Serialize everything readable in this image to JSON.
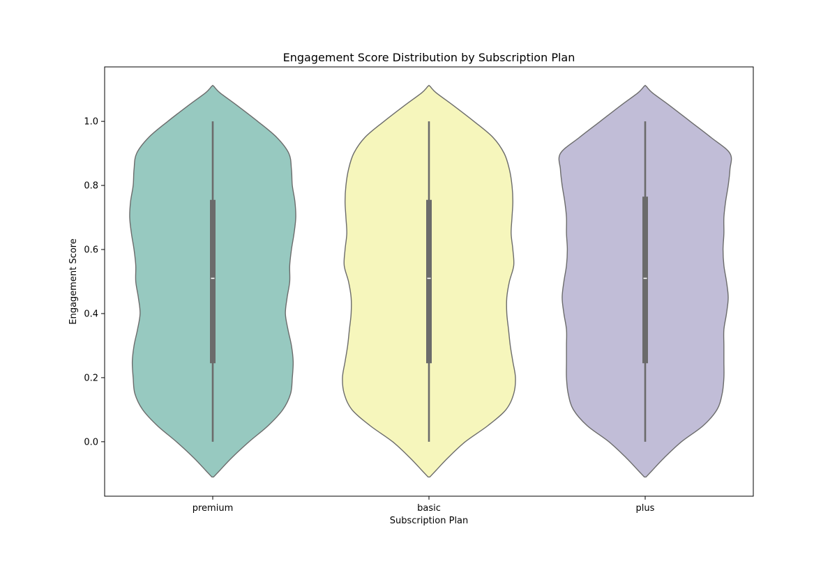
{
  "chart_data": {
    "type": "violin",
    "title": "Engagement Score Distribution by Subscription Plan",
    "xlabel": "Subscription Plan",
    "ylabel": "Engagement Score",
    "categories": [
      "premium",
      "basic",
      "plus"
    ],
    "ylim": [
      -0.17,
      1.17
    ],
    "yticks": [
      0.0,
      0.2,
      0.4,
      0.6,
      0.8,
      1.0
    ],
    "ytick_labels": [
      "0.0",
      "0.2",
      "0.4",
      "0.6",
      "0.8",
      "1.0"
    ],
    "grid": false,
    "legend": "none",
    "colors": [
      "#97c9c0",
      "#f6f6bc",
      "#c1bdd7"
    ],
    "edge_color": "#6b6b6b",
    "box_color": "#6b6b6b",
    "median_color": "#ffffff",
    "violins": [
      {
        "category": "premium",
        "min": 0.0,
        "q1": 0.245,
        "median": 0.51,
        "q3": 0.755,
        "max": 1.0,
        "kde_y": [
          -0.11,
          -0.09,
          -0.05,
          0.0,
          0.05,
          0.1,
          0.15,
          0.2,
          0.25,
          0.3,
          0.35,
          0.4,
          0.45,
          0.5,
          0.55,
          0.6,
          0.65,
          0.7,
          0.75,
          0.8,
          0.85,
          0.9,
          0.95,
          1.0,
          1.05,
          1.09,
          1.11
        ],
        "kde_w": [
          0.01,
          0.08,
          0.22,
          0.42,
          0.64,
          0.81,
          0.9,
          0.92,
          0.93,
          0.91,
          0.87,
          0.84,
          0.86,
          0.89,
          0.89,
          0.91,
          0.94,
          0.96,
          0.95,
          0.92,
          0.91,
          0.88,
          0.74,
          0.52,
          0.28,
          0.08,
          0.01
        ]
      },
      {
        "category": "basic",
        "min": 0.0,
        "q1": 0.245,
        "median": 0.51,
        "q3": 0.755,
        "max": 1.0,
        "kde_y": [
          -0.11,
          -0.09,
          -0.05,
          0.0,
          0.05,
          0.1,
          0.15,
          0.2,
          0.25,
          0.3,
          0.35,
          0.4,
          0.45,
          0.5,
          0.55,
          0.6,
          0.65,
          0.7,
          0.75,
          0.8,
          0.85,
          0.9,
          0.95,
          1.0,
          1.05,
          1.09,
          1.11
        ],
        "kde_w": [
          0.01,
          0.08,
          0.22,
          0.42,
          0.68,
          0.89,
          0.98,
          1.0,
          0.97,
          0.94,
          0.92,
          0.9,
          0.9,
          0.93,
          0.98,
          0.97,
          0.95,
          0.96,
          0.97,
          0.96,
          0.93,
          0.87,
          0.74,
          0.52,
          0.28,
          0.08,
          0.01
        ]
      },
      {
        "category": "plus",
        "min": 0.0,
        "q1": 0.245,
        "median": 0.51,
        "q3": 0.765,
        "max": 1.0,
        "kde_y": [
          -0.11,
          -0.09,
          -0.05,
          0.0,
          0.05,
          0.1,
          0.15,
          0.2,
          0.25,
          0.3,
          0.35,
          0.4,
          0.45,
          0.5,
          0.55,
          0.6,
          0.65,
          0.7,
          0.75,
          0.8,
          0.85,
          0.9,
          0.95,
          1.0,
          1.05,
          1.09,
          1.11
        ],
        "kde_w": [
          0.01,
          0.08,
          0.22,
          0.42,
          0.67,
          0.83,
          0.89,
          0.91,
          0.91,
          0.91,
          0.91,
          0.94,
          0.96,
          0.94,
          0.91,
          0.9,
          0.91,
          0.91,
          0.93,
          0.96,
          0.98,
          0.98,
          0.76,
          0.52,
          0.28,
          0.08,
          0.01
        ]
      }
    ]
  }
}
